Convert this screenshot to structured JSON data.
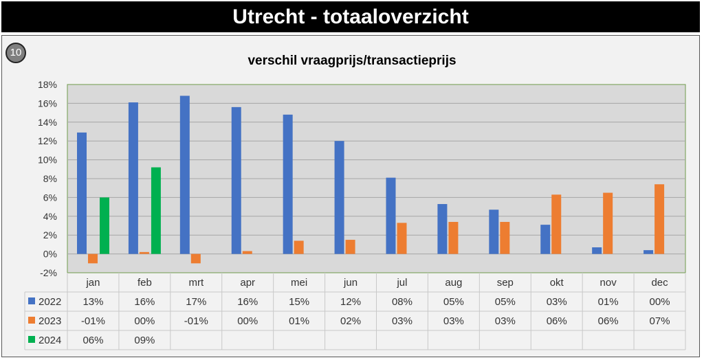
{
  "header": {
    "title": "Utrecht - totaaloverzicht"
  },
  "badge": "10",
  "chart_data": {
    "type": "bar",
    "title": "verschil vraagprijs/transactieprijs",
    "categories": [
      "jan",
      "feb",
      "mrt",
      "apr",
      "mei",
      "jun",
      "jul",
      "aug",
      "sep",
      "okt",
      "nov",
      "dec"
    ],
    "ylim": [
      -2,
      18
    ],
    "yticks": [
      -2,
      0,
      2,
      4,
      6,
      8,
      10,
      12,
      14,
      16,
      18
    ],
    "ytick_labels": [
      "-2%",
      "0%",
      "2%",
      "4%",
      "6%",
      "8%",
      "10%",
      "12%",
      "14%",
      "16%",
      "18%"
    ],
    "series": [
      {
        "name": "2022",
        "color": "#4472c4",
        "values": [
          12.9,
          16.1,
          16.8,
          15.6,
          14.8,
          12.0,
          8.1,
          5.3,
          4.7,
          3.1,
          0.7,
          0.4
        ],
        "labels": [
          "13%",
          "16%",
          "17%",
          "16%",
          "15%",
          "12%",
          "08%",
          "05%",
          "05%",
          "03%",
          "01%",
          "00%"
        ]
      },
      {
        "name": "2023",
        "color": "#ed7d31",
        "values": [
          -1.0,
          0.2,
          -1.0,
          0.3,
          1.4,
          1.5,
          3.3,
          3.4,
          3.4,
          6.3,
          6.5,
          7.4
        ],
        "labels": [
          "-01%",
          "00%",
          "-01%",
          "00%",
          "01%",
          "02%",
          "03%",
          "03%",
          "03%",
          "06%",
          "06%",
          "07%"
        ]
      },
      {
        "name": "2024",
        "color": "#00b050",
        "values": [
          6.0,
          9.2,
          null,
          null,
          null,
          null,
          null,
          null,
          null,
          null,
          null,
          null
        ],
        "labels": [
          "06%",
          "09%",
          "",
          "",
          "",
          "",
          "",
          "",
          "",
          "",
          "",
          ""
        ]
      }
    ]
  }
}
